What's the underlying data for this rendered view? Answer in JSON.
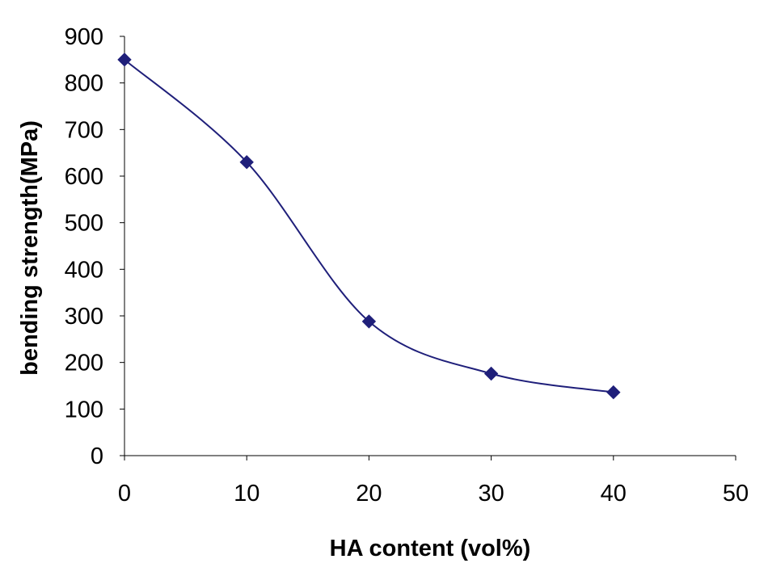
{
  "chart_data": {
    "type": "line",
    "title": "",
    "xlabel": "HA content (vol%)",
    "ylabel": "bending strength(MPa)",
    "xlim": [
      0,
      50
    ],
    "ylim": [
      0,
      900
    ],
    "x_ticks": [
      0,
      10,
      20,
      30,
      40,
      50
    ],
    "y_ticks": [
      0,
      100,
      200,
      300,
      400,
      500,
      600,
      700,
      800,
      900
    ],
    "grid": false,
    "legend": "none",
    "smooth": true,
    "series": [
      {
        "x": [
          0,
          10,
          20,
          30,
          40
        ],
        "values": [
          850,
          630,
          288,
          176,
          136
        ],
        "color": "#1f1f7a",
        "marker": "diamond"
      }
    ]
  }
}
